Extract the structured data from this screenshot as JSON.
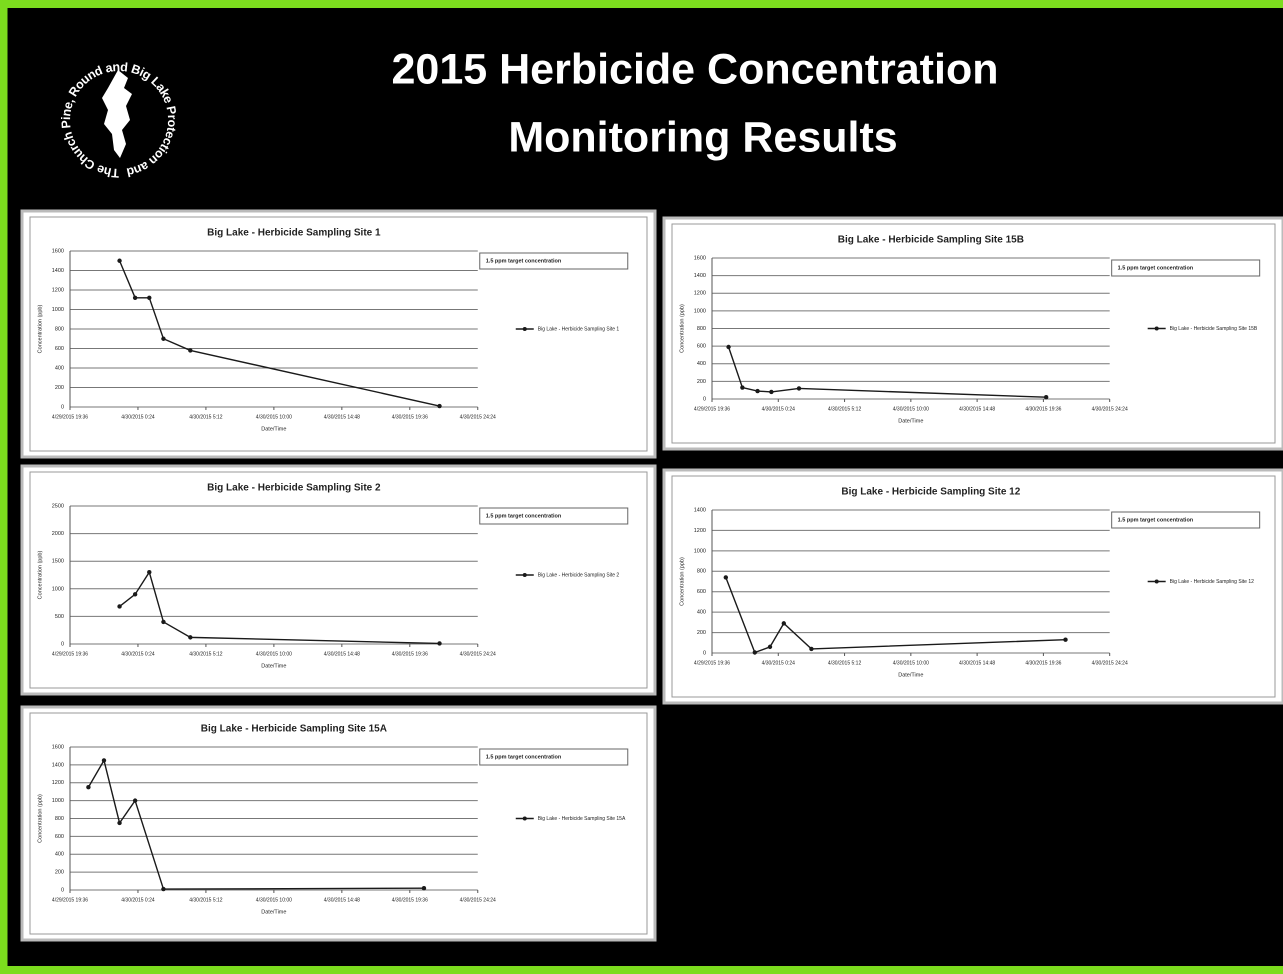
{
  "slide": {
    "title_lines": [
      "2015 Herbicide  Concentration",
      "Monitoring  Results"
    ],
    "logo_text": "The Church Pine, Round and Big Lake Protection and Rehabilitation District"
  },
  "chart_data": [
    {
      "type": "line",
      "title": "Big Lake - Herbicide Sampling Site 1",
      "ylabel": "Concentration (ppb)",
      "xlabel": "Date/Time",
      "target_label": "1.5 ppm target concentration",
      "x": [
        "4/29/2015 23:06",
        "4/30/2015 0:12",
        "4/30/2015 1:12",
        "4/30/2015 2:12",
        "4/30/2015 4:06",
        "4/30/2015 21:42"
      ],
      "series": [
        {
          "name": "Big Lake - Herbicide Sampling Site 1",
          "color": "#1a1a1a",
          "values": [
            1500,
            1120,
            1120,
            700,
            580,
            10
          ]
        }
      ],
      "xlim": [
        "4/29/2015 19:36",
        "4/30/2015 24:24"
      ],
      "xticks": [
        "4/29/2015 19:36",
        "4/30/2015 0:24",
        "4/30/2015 5:12",
        "4/30/2015 10:00",
        "4/30/2015 14:48",
        "4/30/2015 19:36",
        "4/30/2015 24:24"
      ],
      "ylim": [
        0,
        1600
      ],
      "yticks": [
        0,
        200,
        400,
        600,
        800,
        1000,
        1200,
        1400,
        1600
      ],
      "grid": true
    },
    {
      "type": "line",
      "title": "Big Lake - Herbicide Sampling Site 15B",
      "ylabel": "Concentration (ppb)",
      "xlabel": "Date/Time",
      "target_label": "1.5 ppm target concentration",
      "x": [
        "4/29/2015 20:48",
        "4/29/2015 21:48",
        "4/29/2015 22:54",
        "4/29/2015 23:54",
        "4/30/2015 1:54",
        "4/30/2015 19:48"
      ],
      "series": [
        {
          "name": "Big Lake - Herbicide Sampling Site 15B",
          "color": "#1a1a1a",
          "values": [
            590,
            130,
            90,
            80,
            120,
            20
          ]
        }
      ],
      "xlim": [
        "4/29/2015 19:36",
        "4/30/2015 24:24"
      ],
      "xticks": [
        "4/29/2015 19:36",
        "4/30/2015 0:24",
        "4/30/2015 5:12",
        "4/30/2015 10:00",
        "4/30/2015 14:48",
        "4/30/2015 19:36",
        "4/30/2015 24:24"
      ],
      "ylim": [
        0,
        1600
      ],
      "yticks": [
        0,
        200,
        400,
        600,
        800,
        1000,
        1200,
        1400,
        1600
      ],
      "grid": true
    },
    {
      "type": "line",
      "title": "Big Lake - Herbicide Sampling Site 2",
      "ylabel": "Concentration (ppb)",
      "xlabel": "Date/Time",
      "target_label": "1.5 ppm target concentration",
      "x": [
        "4/29/2015 23:06",
        "4/30/2015 0:12",
        "4/30/2015 1:12",
        "4/30/2015 2:12",
        "4/30/2015 4:06",
        "4/30/2015 21:42"
      ],
      "series": [
        {
          "name": "Big Lake - Herbicide Sampling Site 2",
          "color": "#1a1a1a",
          "values": [
            680,
            900,
            1300,
            400,
            120,
            10
          ]
        }
      ],
      "xlim": [
        "4/29/2015 19:36",
        "4/30/2015 24:24"
      ],
      "xticks": [
        "4/29/2015 19:36",
        "4/30/2015 0:24",
        "4/30/2015 5:12",
        "4/30/2015 10:00",
        "4/30/2015 14:48",
        "4/30/2015 19:36",
        "4/30/2015 24:24"
      ],
      "ylim": [
        0,
        2500
      ],
      "yticks": [
        0,
        500,
        1000,
        1500,
        2000,
        2500
      ],
      "grid": true
    },
    {
      "type": "line",
      "title": "Big Lake - Herbicide Sampling Site 12",
      "ylabel": "Concentration (ppb)",
      "xlabel": "Date/Time",
      "target_label": "1.5 ppm target concentration",
      "x": [
        "4/29/2015 20:36",
        "4/29/2015 22:42",
        "4/29/2015 23:48",
        "4/30/2015 0:48",
        "4/30/2015 2:48",
        "4/30/2015 21:12"
      ],
      "series": [
        {
          "name": "Big Lake - Herbicide Sampling Site 12",
          "color": "#1a1a1a",
          "values": [
            740,
            5,
            60,
            290,
            40,
            130
          ]
        }
      ],
      "xlim": [
        "4/29/2015 19:36",
        "4/30/2015 24:24"
      ],
      "xticks": [
        "4/29/2015 19:36",
        "4/30/2015 0:24",
        "4/30/2015 5:12",
        "4/30/2015 10:00",
        "4/30/2015 14:48",
        "4/30/2015 19:36",
        "4/30/2015 24:24"
      ],
      "ylim": [
        0,
        1400
      ],
      "yticks": [
        0,
        200,
        400,
        600,
        800,
        1000,
        1200,
        1400
      ],
      "grid": true
    },
    {
      "type": "line",
      "title": "Big Lake - Herbicide Sampling Site 15A",
      "ylabel": "Concentration (ppb)",
      "xlabel": "Date/Time",
      "target_label": "1.5 ppm target concentration",
      "x": [
        "4/29/2015 20:54",
        "4/29/2015 22:00",
        "4/29/2015 23:06",
        "4/30/2015 0:12",
        "4/30/2015 2:12",
        "4/30/2015 20:36"
      ],
      "series": [
        {
          "name": "Big Lake - Herbicide Sampling Site 15A",
          "color": "#1a1a1a",
          "values": [
            1150,
            1450,
            750,
            1000,
            10,
            20
          ]
        }
      ],
      "xlim": [
        "4/29/2015 19:36",
        "4/30/2015 24:24"
      ],
      "xticks": [
        "4/29/2015 19:36",
        "4/30/2015 0:24",
        "4/30/2015 5:12",
        "4/30/2015 10:00",
        "4/30/2015 14:48",
        "4/30/2015 19:36",
        "4/30/2015 24:24"
      ],
      "ylim": [
        0,
        1600
      ],
      "yticks": [
        0,
        200,
        400,
        600,
        800,
        1000,
        1200,
        1400,
        1600
      ],
      "grid": true
    }
  ]
}
